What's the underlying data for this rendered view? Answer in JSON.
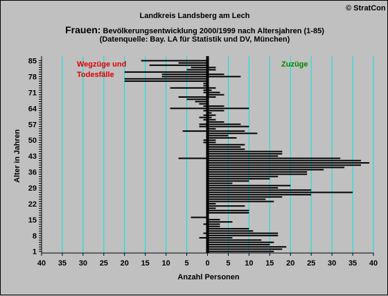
{
  "copyright": "© StratCon",
  "chart_data": {
    "type": "bar",
    "orientation": "horizontal",
    "title": "Landkreis Landsberg am Lech",
    "subtitle_prefix": "Frauen:",
    "subtitle": " Bevölkerungsentwicklung 2000/1999  nach Altersjahren (1-85)",
    "source": "(Datenquelle: Bay. LA für Statistik und DV, München)",
    "xlabel": "Anzahl Personen",
    "ylabel": "Alter in Jahren",
    "xlim": [
      -40,
      40
    ],
    "ylim": [
      1,
      85
    ],
    "x_ticks": [
      -40,
      -35,
      -30,
      -25,
      -20,
      -15,
      -10,
      -5,
      0,
      5,
      10,
      15,
      20,
      25,
      30,
      35,
      40
    ],
    "x_tick_labels": [
      "40",
      "35",
      "30",
      "25",
      "20",
      "15",
      "10",
      "5",
      "0",
      "5",
      "10",
      "15",
      "20",
      "25",
      "30",
      "35",
      "40"
    ],
    "y_ticks": [
      1,
      8,
      15,
      22,
      29,
      36,
      43,
      50,
      57,
      64,
      71,
      78,
      85
    ],
    "grid": "vertical",
    "colors": {
      "bars": "#000000",
      "gridlines": "#00e5e5",
      "background": "#c0c0c0",
      "label_left": "#dd0000",
      "label_right": "#008800"
    },
    "annotations": [
      {
        "text": "Wegzüge und",
        "side": "left",
        "color": "#dd0000"
      },
      {
        "text": "Todesfälle",
        "side": "left",
        "color": "#dd0000"
      },
      {
        "text": "Zuzüge",
        "side": "right",
        "color": "#008800"
      }
    ],
    "ages": [
      1,
      2,
      3,
      4,
      5,
      6,
      7,
      8,
      9,
      10,
      11,
      12,
      13,
      14,
      15,
      16,
      17,
      18,
      19,
      20,
      21,
      22,
      23,
      24,
      25,
      26,
      27,
      28,
      29,
      30,
      31,
      32,
      33,
      34,
      35,
      36,
      37,
      38,
      39,
      40,
      41,
      42,
      43,
      44,
      45,
      46,
      47,
      48,
      49,
      50,
      51,
      52,
      53,
      54,
      55,
      56,
      57,
      58,
      59,
      60,
      61,
      62,
      63,
      64,
      65,
      66,
      67,
      68,
      69,
      70,
      71,
      72,
      73,
      74,
      75,
      76,
      77,
      78,
      79,
      80,
      81,
      82,
      83,
      84,
      85
    ],
    "series": [
      {
        "name": "Wegzüge und Todesfälle",
        "values": [
          0,
          0,
          0,
          0,
          0,
          0,
          -2,
          0,
          -1,
          0,
          0,
          0,
          -1,
          0,
          0,
          -4,
          0,
          0,
          0,
          0,
          0,
          0,
          0,
          0,
          0,
          0,
          0,
          0,
          0,
          0,
          0,
          0,
          0,
          0,
          0,
          0,
          0,
          0,
          0,
          0,
          0,
          -7,
          0,
          0,
          0,
          0,
          0,
          0,
          -1,
          -1,
          0,
          0,
          0,
          -6,
          0,
          -2,
          -2,
          0,
          -1,
          -2,
          -1,
          0,
          -1,
          -9,
          -1,
          -2,
          -3,
          -5,
          -7,
          0,
          -1,
          -1,
          -9,
          -1,
          -1,
          -20,
          -20,
          -11,
          -11,
          -20,
          -5,
          -4,
          -14,
          -7,
          -16
        ]
      },
      {
        "name": "Zuzüge",
        "values": [
          16,
          18,
          19,
          15,
          16,
          13,
          6,
          17,
          17,
          11,
          10,
          3,
          3,
          6,
          3,
          0,
          0,
          10,
          10,
          2,
          9,
          2,
          16,
          14,
          18,
          25,
          35,
          25,
          17,
          20,
          6,
          10,
          15,
          17,
          24,
          24,
          28,
          33,
          37,
          39,
          37,
          32,
          17,
          18,
          18,
          9,
          8,
          9,
          2,
          2,
          7,
          5,
          12,
          9,
          2,
          10,
          8,
          4,
          2,
          1,
          2,
          1,
          4,
          10,
          4,
          0,
          0,
          0,
          2,
          4,
          3,
          1,
          2,
          0,
          0,
          0,
          0,
          8,
          4,
          0,
          2,
          2,
          0,
          0,
          0
        ]
      }
    ]
  }
}
